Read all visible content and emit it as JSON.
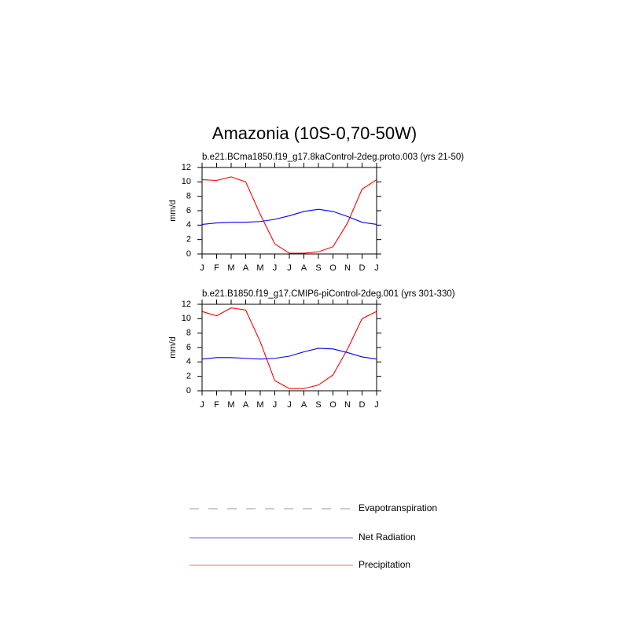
{
  "title": "Amazonia (10S-0,70-50W)",
  "legend": [
    {
      "name": "Evapotranspiration",
      "color": "#999999",
      "dash": true
    },
    {
      "name": "Net Radiation",
      "color": "#0000ff",
      "dash": false
    },
    {
      "name": "Precipitation",
      "color": "#ff0000",
      "dash": false
    }
  ],
  "chart_data": [
    {
      "type": "line",
      "subtitle": "b.e21.BCma1850.f19_g17.8kaControl-2deg.proto.003 (yrs 21-50)",
      "ylabel": "mm/d",
      "categories": [
        "J",
        "F",
        "M",
        "A",
        "M",
        "J",
        "J",
        "A",
        "S",
        "O",
        "N",
        "D",
        "J"
      ],
      "ylim": [
        0,
        12
      ],
      "yticks": [
        0,
        2,
        4,
        6,
        8,
        10,
        12
      ],
      "series": [
        {
          "color": "#ff0000",
          "values": [
            10.3,
            10.2,
            10.7,
            10.0,
            5.5,
            1.4,
            0.1,
            0.1,
            0.3,
            1.0,
            4.3,
            9.0,
            10.3
          ]
        },
        {
          "color": "#0000ff",
          "values": [
            4.1,
            4.3,
            4.4,
            4.4,
            4.5,
            4.8,
            5.3,
            5.9,
            6.2,
            5.9,
            5.2,
            4.4,
            4.1
          ]
        }
      ]
    },
    {
      "type": "line",
      "subtitle": "b.e21.B1850.f19_g17.CMIP6-piControl-2deg.001 (yrs 301-330)",
      "ylabel": "mm/d",
      "categories": [
        "J",
        "F",
        "M",
        "A",
        "M",
        "J",
        "J",
        "A",
        "S",
        "O",
        "N",
        "D",
        "J"
      ],
      "ylim": [
        0,
        12
      ],
      "yticks": [
        0,
        2,
        4,
        6,
        8,
        10,
        12
      ],
      "series": [
        {
          "color": "#ff0000",
          "values": [
            11.0,
            10.4,
            11.5,
            11.2,
            6.8,
            1.4,
            0.3,
            0.3,
            0.8,
            2.2,
            5.8,
            10.0,
            11.0
          ]
        },
        {
          "color": "#0000ff",
          "values": [
            4.4,
            4.6,
            4.6,
            4.5,
            4.4,
            4.5,
            4.8,
            5.4,
            5.9,
            5.8,
            5.3,
            4.7,
            4.4
          ]
        }
      ]
    }
  ]
}
